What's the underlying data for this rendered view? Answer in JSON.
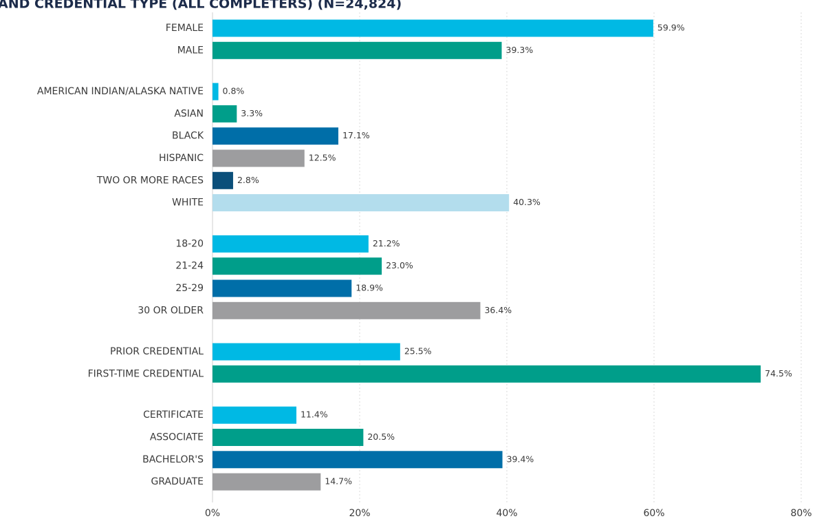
{
  "chart_data": {
    "type": "bar",
    "orientation": "horizontal",
    "title": "AND CREDENTIAL TYPE (ALL COMPLETERS) (N=24,824)",
    "colors": [
      "#00b9e4",
      "#009e8a",
      "#006ea8",
      "#9d9d9f",
      "#0b4f7a",
      "#b3dded"
    ],
    "groups": [
      {
        "categories": [
          "FEMALE",
          "MALE"
        ],
        "values": [
          59.9,
          39.3
        ],
        "value_labels": [
          "59.9%",
          "39.3%"
        ]
      },
      {
        "categories": [
          "AMERICAN INDIAN/ALASKA NATIVE",
          "ASIAN",
          "BLACK",
          "HISPANIC",
          "TWO OR MORE RACES",
          "WHITE"
        ],
        "values": [
          0.8,
          3.3,
          17.1,
          12.5,
          2.8,
          40.3
        ],
        "value_labels": [
          "0.8%",
          "3.3%",
          "17.1%",
          "12.5%",
          "2.8%",
          "40.3%"
        ]
      },
      {
        "categories": [
          "18-20",
          "21-24",
          "25-29",
          "30 OR OLDER"
        ],
        "values": [
          21.2,
          23.0,
          18.9,
          36.4
        ],
        "value_labels": [
          "21.2%",
          "23.0%",
          "18.9%",
          "36.4%"
        ]
      },
      {
        "categories": [
          "PRIOR CREDENTIAL",
          "FIRST-TIME CREDENTIAL"
        ],
        "values": [
          25.5,
          74.5
        ],
        "value_labels": [
          "25.5%",
          "74.5%"
        ]
      },
      {
        "categories": [
          "CERTIFICATE",
          "ASSOCIATE",
          "BACHELOR'S",
          "GRADUATE"
        ],
        "values": [
          11.4,
          20.5,
          39.4,
          14.7
        ],
        "value_labels": [
          "11.4%",
          "20.5%",
          "39.4%",
          "14.7%"
        ]
      }
    ],
    "xlim": [
      0,
      80
    ],
    "xticks": [
      {
        "value": 0,
        "label": "0%"
      },
      {
        "value": 20,
        "label": "20%"
      },
      {
        "value": 40,
        "label": "40%"
      },
      {
        "value": 60,
        "label": "60%"
      },
      {
        "value": 80,
        "label": "80%"
      }
    ],
    "grid": true
  }
}
